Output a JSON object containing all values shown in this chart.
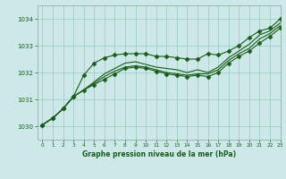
{
  "title": "Graphe pression niveau de la mer (hPa)",
  "background_color": "#cce8e8",
  "grid_color": "#99ccbb",
  "line_color": "#1a5c1a",
  "xlim": [
    -0.5,
    23
  ],
  "ylim": [
    1029.5,
    1034.5
  ],
  "yticks": [
    1030,
    1031,
    1032,
    1033,
    1034
  ],
  "xticks": [
    0,
    1,
    2,
    3,
    4,
    5,
    6,
    7,
    8,
    9,
    10,
    11,
    12,
    13,
    14,
    15,
    16,
    17,
    18,
    19,
    20,
    21,
    22,
    23
  ],
  "series": [
    {
      "y": [
        1030.05,
        1030.3,
        1030.65,
        1031.1,
        1031.9,
        1032.35,
        1032.55,
        1032.65,
        1032.7,
        1032.7,
        1032.7,
        1032.6,
        1032.6,
        1032.55,
        1032.5,
        1032.5,
        1032.7,
        1032.65,
        1032.8,
        1033.0,
        1033.3,
        1033.55,
        1033.65,
        1034.0
      ],
      "marker": "D",
      "markersize": 2.5,
      "linewidth": 0.8
    },
    {
      "y": [
        1030.05,
        1030.3,
        1030.65,
        1031.1,
        1031.35,
        1031.65,
        1031.95,
        1032.15,
        1032.35,
        1032.4,
        1032.3,
        1032.2,
        1032.15,
        1032.1,
        1032.0,
        1032.1,
        1032.0,
        1032.2,
        1032.55,
        1032.8,
        1033.05,
        1033.4,
        1033.55,
        1033.85
      ],
      "marker": null,
      "markersize": null,
      "linewidth": 0.8
    },
    {
      "y": [
        1030.05,
        1030.3,
        1030.65,
        1031.1,
        1031.35,
        1031.6,
        1031.85,
        1032.05,
        1032.2,
        1032.25,
        1032.2,
        1032.1,
        1032.0,
        1031.95,
        1031.9,
        1031.95,
        1031.95,
        1032.1,
        1032.45,
        1032.7,
        1032.9,
        1033.25,
        1033.45,
        1033.75
      ],
      "marker": null,
      "markersize": null,
      "linewidth": 0.8
    },
    {
      "y": [
        1030.05,
        1030.3,
        1030.65,
        1031.1,
        1031.35,
        1031.55,
        1031.75,
        1031.95,
        1032.15,
        1032.2,
        1032.15,
        1032.05,
        1031.95,
        1031.9,
        1031.85,
        1031.9,
        1031.85,
        1032.0,
        1032.35,
        1032.6,
        1032.8,
        1033.1,
        1033.35,
        1033.65
      ],
      "marker": "D",
      "markersize": 2.5,
      "linewidth": 0.8
    }
  ]
}
